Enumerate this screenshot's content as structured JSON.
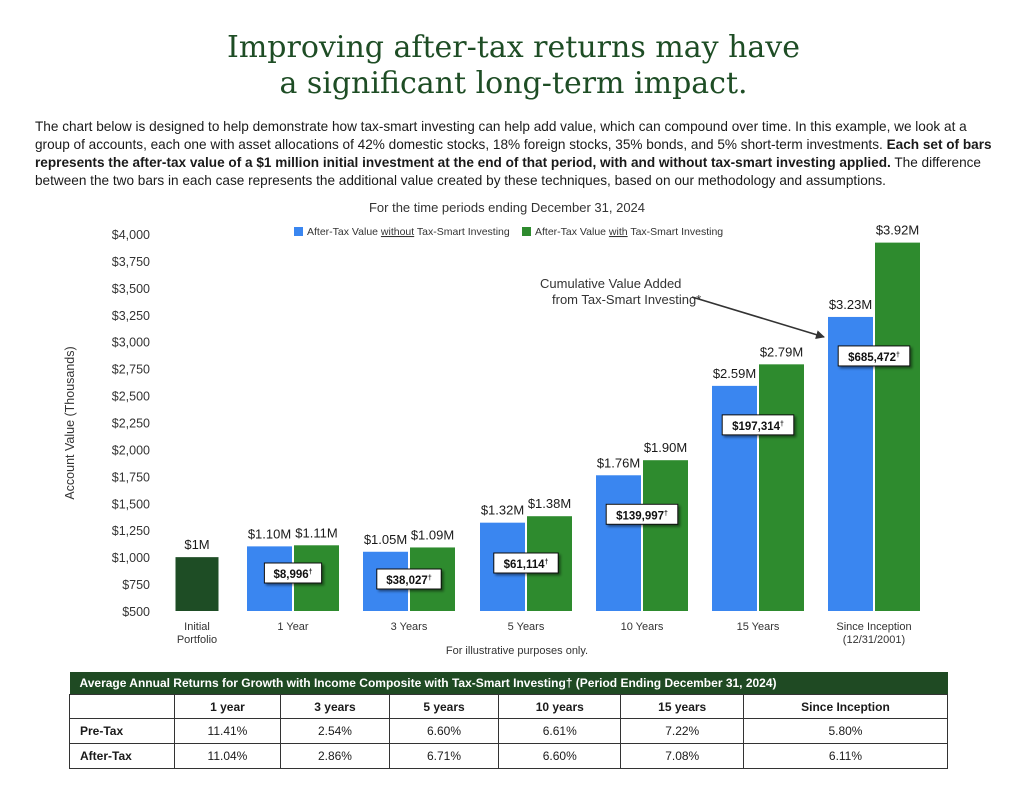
{
  "headline": {
    "line1": "Improving after-tax returns may have",
    "line2": "a significant long-term impact."
  },
  "intro": {
    "text_plain": "The chart below is designed to help demonstrate how tax-smart investing can help add value, which can compound over time. In this example, we look at a group of accounts, each one with asset allocations of 42% domestic stocks, 18% foreign stocks, 35% bonds, and 5% short-term investments. ",
    "text_bold": "Each set of bars represents the after-tax value of a $1 million initial investment at the end of that period, with and without tax-smart investing applied.",
    "text_tail": " The difference between the two bars in each case represents the additional value created by these techniques, based on our methodology and assumptions."
  },
  "chart_data": {
    "type": "bar",
    "title": "For the time periods ending December 31, 2024",
    "ylabel": "Account Value (Thousands)",
    "xlabel": "",
    "ylim": [
      500,
      4000
    ],
    "yticks": [
      "$500",
      "$750",
      "$1,000",
      "$1,250",
      "$1,500",
      "$1,750",
      "$2,000",
      "$2,250",
      "$2,500",
      "$2,750",
      "$3,000",
      "$3,250",
      "$3,500",
      "$3,750",
      "$4,000"
    ],
    "ytick_values": [
      500,
      750,
      1000,
      1250,
      1500,
      1750,
      2000,
      2250,
      2500,
      2750,
      3000,
      3250,
      3500,
      3750,
      4000
    ],
    "initial": {
      "category": [
        "Initial",
        "Portfolio"
      ],
      "value": 1000,
      "label": "$1M",
      "color": "#1e4d25"
    },
    "categories": [
      [
        "1 Year"
      ],
      [
        "3 Years"
      ],
      [
        "5 Years"
      ],
      [
        "10 Years"
      ],
      [
        "15 Years"
      ],
      [
        "Since Inception",
        "(12/31/2001)"
      ]
    ],
    "series": [
      {
        "name": "After-Tax Value without Tax-Smart Investing",
        "color": "#3a86f0",
        "values": [
          1100,
          1050,
          1320,
          1760,
          2590,
          3230
        ],
        "labels": [
          "$1.10M",
          "$1.05M",
          "$1.32M",
          "$1.76M",
          "$2.59M",
          "$3.23M"
        ]
      },
      {
        "name": "After-Tax Value with Tax-Smart Investing",
        "color": "#2e8b2e",
        "values": [
          1110,
          1090,
          1380,
          1900,
          2790,
          3920
        ],
        "labels": [
          "$1.11M",
          "$1.09M",
          "$1.38M",
          "$1.90M",
          "$2.79M",
          "$3.92M"
        ]
      }
    ],
    "legend": {
      "without": {
        "pre": "After-Tax Value ",
        "underlined": "without",
        "post": " Tax-Smart Investing"
      },
      "with": {
        "pre": "After-Tax Value ",
        "underlined": "with",
        "post": " Tax-Smart Investing"
      }
    },
    "value_added": [
      "$8,996",
      "$38,027",
      "$61,114",
      "$139,997",
      "$197,314",
      "$685,472"
    ],
    "value_added_mark": "†",
    "annotation": {
      "line1": "Cumulative Value Added",
      "line2": "from Tax-Smart Investing*"
    },
    "footnote": "For illustrative purposes only."
  },
  "table": {
    "caption": "Average Annual Returns for Growth with Income Composite with Tax-Smart Investing† (Period Ending December 31, 2024)",
    "columns": [
      "",
      "1 year",
      "3 years",
      "5 years",
      "10 years",
      "15 years",
      "Since Inception"
    ],
    "rows": [
      {
        "label": "Pre-Tax",
        "values": [
          "11.41%",
          "2.54%",
          "6.60%",
          "6.61%",
          "7.22%",
          "5.80%"
        ]
      },
      {
        "label": "After-Tax",
        "values": [
          "11.04%",
          "2.86%",
          "6.71%",
          "6.60%",
          "7.08%",
          "6.11%"
        ]
      }
    ]
  }
}
